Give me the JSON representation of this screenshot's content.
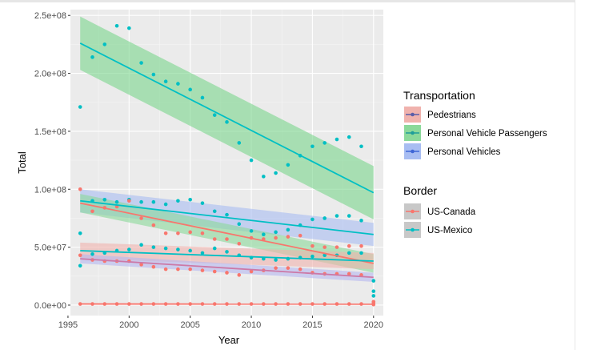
{
  "chart_data": {
    "type": "scatter",
    "xlabel": "Year",
    "ylabel": "Total",
    "xlim": [
      1995.2,
      2020.8
    ],
    "ylim": [
      -9000000,
      255000000
    ],
    "x_ticks": [
      1995,
      2000,
      2005,
      2010,
      2015,
      2020
    ],
    "y_ticks": [
      0,
      50000000,
      100000000,
      150000000,
      200000000,
      250000000
    ],
    "y_tick_labels": [
      "0.0e+00",
      "5.0e+07",
      "1.0e+08",
      "1.5e+08",
      "2.0e+08",
      "2.5e+08"
    ],
    "grid": true,
    "legend_position": "right",
    "legends": [
      {
        "title": "Transportation",
        "entries": [
          {
            "label": "Pedestrians",
            "fill": "#f0b2ad",
            "line": "#5b5ea8"
          },
          {
            "label": "Personal Vehicle Passengers",
            "fill": "#8bd99a",
            "line": "#1f9e9a"
          },
          {
            "label": "Personal Vehicles",
            "fill": "#a8bdf2",
            "line": "#3f66d6"
          }
        ]
      },
      {
        "title": "Border",
        "entries": [
          {
            "label": "US-Canada",
            "color": "#f8766d"
          },
          {
            "label": "US-Mexico",
            "color": "#00bfc4"
          }
        ]
      }
    ],
    "series": [
      {
        "name": "US-Mexico",
        "color": "#00bfc4",
        "x": [
          1996,
          1997,
          1998,
          1999,
          2000,
          2001,
          2002,
          2003,
          2004,
          2005,
          2006,
          2007,
          2008,
          2009,
          2010,
          2011,
          2012,
          2013,
          2014,
          2015,
          2016,
          2017,
          2018,
          2019,
          2020,
          1996,
          1997,
          1998,
          1999,
          2000,
          2001,
          2002,
          2003,
          2004,
          2005,
          2006,
          2007,
          2008,
          2009,
          2010,
          2011,
          2012,
          2013,
          2014,
          2015,
          2016,
          2017,
          2018,
          2019,
          2020,
          1996,
          1997,
          1998,
          1999,
          2000,
          2001,
          2002,
          2003,
          2004,
          2005,
          2006,
          2007,
          2008,
          2009,
          2010,
          2011,
          2012,
          2013,
          2014,
          2015,
          2016,
          2017,
          2018,
          2019,
          2020
        ],
        "y": [
          171000000,
          214000000,
          225000000,
          241000000,
          239000000,
          209000000,
          199000000,
          193000000,
          191000000,
          186000000,
          179000000,
          164000000,
          158000000,
          140000000,
          125000000,
          111000000,
          114000000,
          121000000,
          129000000,
          137000000,
          140000000,
          143000000,
          145000000,
          137000000,
          12000000,
          62000000,
          90000000,
          91000000,
          89000000,
          91000000,
          89000000,
          89000000,
          87000000,
          90000000,
          91000000,
          88000000,
          81000000,
          78000000,
          70000000,
          64000000,
          61000000,
          63000000,
          65000000,
          69000000,
          74000000,
          75000000,
          77000000,
          77000000,
          73000000,
          8000000,
          34000000,
          44000000,
          45000000,
          47000000,
          48000000,
          52000000,
          50000000,
          49000000,
          48000000,
          47000000,
          45000000,
          49000000,
          46000000,
          43000000,
          41000000,
          40000000,
          39000000,
          40000000,
          41000000,
          42000000,
          43000000,
          43000000,
          45000000,
          45000000,
          21000000
        ]
      },
      {
        "name": "US-Canada",
        "color": "#f8766d",
        "x": [
          1996,
          1997,
          1998,
          1999,
          2000,
          2001,
          2002,
          2003,
          2004,
          2005,
          2006,
          2007,
          2008,
          2009,
          2010,
          2011,
          2012,
          2013,
          2014,
          2015,
          2016,
          2017,
          2018,
          2019,
          2020,
          1996,
          1997,
          1998,
          1999,
          2000,
          2001,
          2002,
          2003,
          2004,
          2005,
          2006,
          2007,
          2008,
          2009,
          2010,
          2011,
          2012,
          2013,
          2014,
          2015,
          2016,
          2017,
          2018,
          2019,
          2020,
          1996,
          1997,
          1998,
          1999,
          2000,
          2001,
          2002,
          2003,
          2004,
          2005,
          2006,
          2007,
          2008,
          2009,
          2010,
          2011,
          2012,
          2013,
          2014,
          2015,
          2016,
          2017,
          2018,
          2019,
          2020
        ],
        "y": [
          100000000,
          81000000,
          84000000,
          85000000,
          90000000,
          75000000,
          69000000,
          62000000,
          62000000,
          63000000,
          62000000,
          57000000,
          57000000,
          53000000,
          58000000,
          57000000,
          58000000,
          59000000,
          60000000,
          51000000,
          50000000,
          50000000,
          51000000,
          51000000,
          3000000,
          43000000,
          39000000,
          38000000,
          38000000,
          38000000,
          35000000,
          33000000,
          31000000,
          31000000,
          31000000,
          30000000,
          29000000,
          28000000,
          26000000,
          29000000,
          30000000,
          32000000,
          32000000,
          31000000,
          28000000,
          27000000,
          27000000,
          27000000,
          26000000,
          2000000,
          1000000,
          1000000,
          1000000,
          1000000,
          1000000,
          1000000,
          1000000,
          1000000,
          1000000,
          1000000,
          1000000,
          1000000,
          1000000,
          1000000,
          1000000,
          1000000,
          1000000,
          1000000,
          1000000,
          1000000,
          1000000,
          1000000,
          1000000,
          1000000,
          500000
        ]
      }
    ],
    "fit_lines": [
      {
        "group": "Personal Vehicle Passengers",
        "border": "US-Mexico",
        "line_color": "#00bfc4",
        "band_color": "#7ad68c",
        "y_start": 226000000,
        "y_end": 97000000,
        "se_start": 23000000,
        "se_end": 23000000
      },
      {
        "group": "Personal Vehicles",
        "border": "US-Mexico",
        "line_color": "#00bfc4",
        "band_color": "#a8bdf2",
        "y_start": 90000000,
        "y_end": 61000000,
        "se_start": 10000000,
        "se_end": 10000000
      },
      {
        "group": "Personal Vehicles",
        "border": "US-Canada",
        "line_color": "#f8766d",
        "band_color": "#8bd99a",
        "y_start": 88000000,
        "y_end": 36000000,
        "se_start": 8000000,
        "se_end": 8000000
      },
      {
        "group": "Pedestrians",
        "border": "US-Mexico",
        "line_color": "#00bfc4",
        "band_color": "#f0b2ad",
        "y_start": 47000000,
        "y_end": 38000000,
        "se_start": 7000000,
        "se_end": 7000000
      },
      {
        "group": "Pedestrians",
        "border": "US-Canada",
        "line_color": "#cc79a7",
        "band_color": "#b5b8f0",
        "y_start": 40000000,
        "y_end": 24000000,
        "se_start": 4000000,
        "se_end": 4000000
      },
      {
        "group": "Pedestrians",
        "border": "US-Canada",
        "line_color": "#f8766d",
        "band_color": "#f0b2ad",
        "y_start": 1000000,
        "y_end": 900000,
        "se_start": 700000,
        "se_end": 700000
      }
    ]
  }
}
